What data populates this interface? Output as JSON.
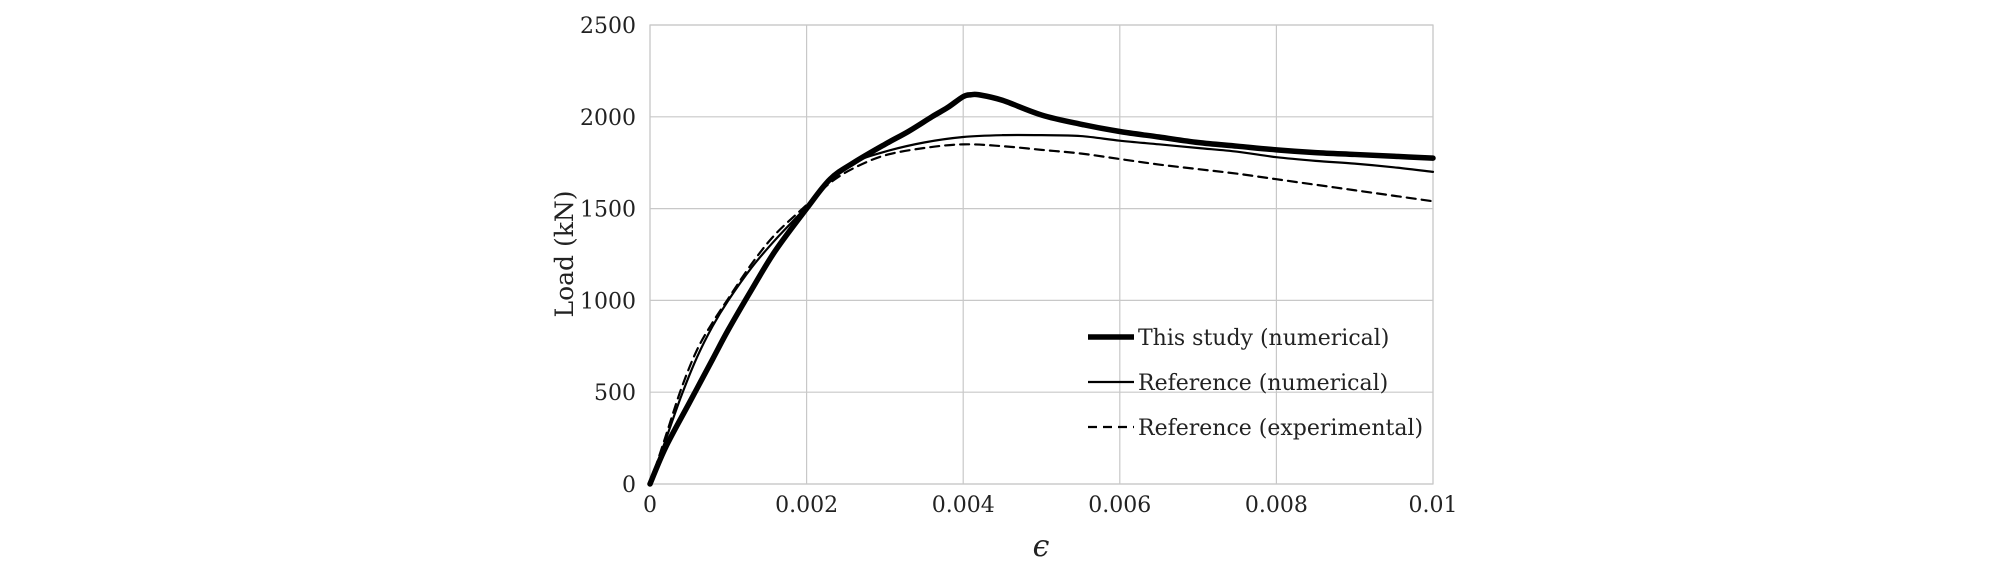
{
  "chart_data": {
    "type": "line",
    "title": "",
    "xlabel": "ϵ",
    "ylabel": "Load (kN)",
    "xlim": [
      0,
      0.01
    ],
    "ylim": [
      0,
      2500
    ],
    "x_ticks": [
      0,
      0.002,
      0.004,
      0.006,
      0.008,
      0.01
    ],
    "x_tick_labels": [
      "0",
      "0.002",
      "0.004",
      "0.006",
      "0.008",
      "0.01"
    ],
    "y_ticks": [
      0,
      500,
      1000,
      1500,
      2000,
      2500
    ],
    "y_tick_labels": [
      "0",
      "500",
      "1000",
      "1500",
      "2000",
      "2500"
    ],
    "grid": true,
    "legend_position": "bottom-right",
    "series": [
      {
        "name": "This study (numerical)",
        "style": "thick-solid",
        "color": "#000000",
        "x": [
          0,
          0.0002,
          0.0005,
          0.0008,
          0.001,
          0.0013,
          0.0016,
          0.002,
          0.0023,
          0.0026,
          0.003,
          0.0033,
          0.0036,
          0.0038,
          0.004,
          0.0041,
          0.0042,
          0.0045,
          0.005,
          0.0055,
          0.006,
          0.0065,
          0.007,
          0.0075,
          0.008,
          0.0085,
          0.009,
          0.0095,
          0.01
        ],
        "y": [
          0,
          200,
          440,
          680,
          840,
          1060,
          1270,
          1500,
          1660,
          1750,
          1850,
          1920,
          2000,
          2050,
          2110,
          2120,
          2120,
          2090,
          2010,
          1960,
          1920,
          1890,
          1860,
          1840,
          1820,
          1805,
          1795,
          1785,
          1775
        ]
      },
      {
        "name": "Reference (numerical)",
        "style": "thin-solid",
        "color": "#000000",
        "x": [
          0,
          0.0002,
          0.0004,
          0.0006,
          0.0008,
          0.001,
          0.0013,
          0.0016,
          0.002,
          0.0023,
          0.0026,
          0.003,
          0.0035,
          0.004,
          0.0045,
          0.005,
          0.0055,
          0.006,
          0.0065,
          0.007,
          0.0075,
          0.008,
          0.0085,
          0.009,
          0.0095,
          0.01
        ],
        "y": [
          0,
          240,
          480,
          690,
          860,
          1000,
          1180,
          1330,
          1510,
          1650,
          1750,
          1810,
          1860,
          1890,
          1900,
          1900,
          1895,
          1870,
          1850,
          1830,
          1810,
          1780,
          1760,
          1745,
          1725,
          1700
        ]
      },
      {
        "name": "Reference (experimental)",
        "style": "dashed",
        "color": "#000000",
        "x": [
          0,
          0.0002,
          0.0004,
          0.0006,
          0.0008,
          0.001,
          0.0013,
          0.0016,
          0.002,
          0.0023,
          0.0026,
          0.003,
          0.0035,
          0.004,
          0.0045,
          0.005,
          0.0055,
          0.006,
          0.0065,
          0.007,
          0.0075,
          0.008,
          0.0085,
          0.009,
          0.0095,
          0.01
        ],
        "y": [
          0,
          260,
          520,
          730,
          880,
          1010,
          1200,
          1360,
          1520,
          1640,
          1720,
          1790,
          1830,
          1850,
          1840,
          1820,
          1800,
          1770,
          1740,
          1715,
          1690,
          1660,
          1630,
          1600,
          1570,
          1540
        ]
      }
    ]
  }
}
